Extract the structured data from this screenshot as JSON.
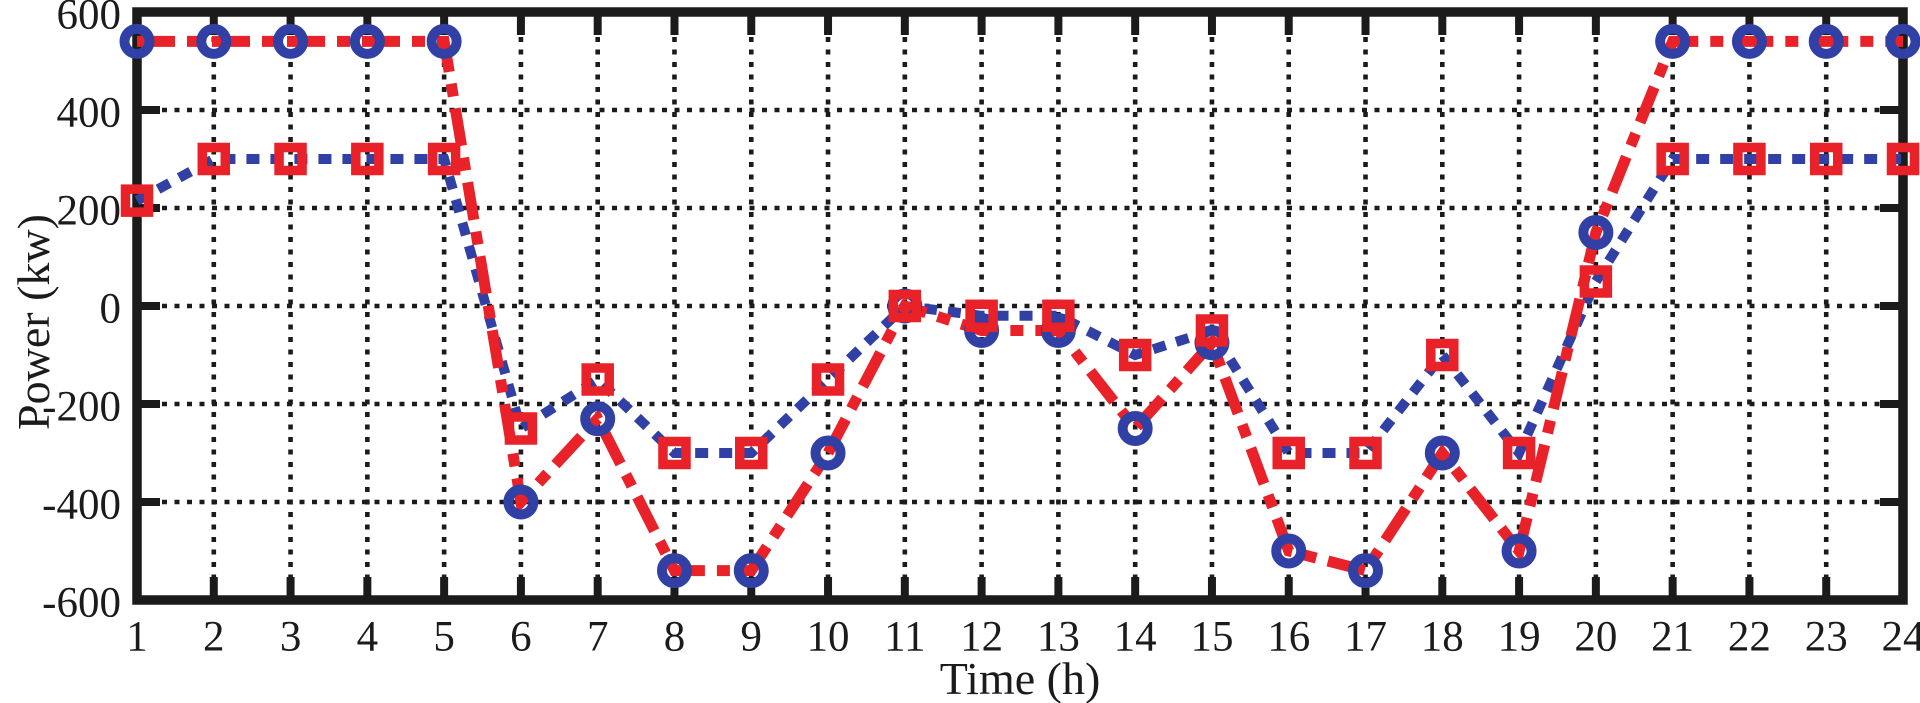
{
  "chart_data": {
    "type": "line",
    "title": "",
    "xlabel": "Time (h)",
    "ylabel": "Power (kw)",
    "x": [
      1,
      2,
      3,
      4,
      5,
      6,
      7,
      8,
      9,
      10,
      11,
      12,
      13,
      14,
      15,
      16,
      17,
      18,
      19,
      20,
      21,
      22,
      23,
      24
    ],
    "xlim": [
      1,
      24
    ],
    "ylim": [
      -600,
      600
    ],
    "xticks": [
      1,
      2,
      3,
      4,
      5,
      6,
      7,
      8,
      9,
      10,
      11,
      12,
      13,
      14,
      15,
      16,
      17,
      18,
      19,
      20,
      21,
      22,
      23,
      24
    ],
    "yticks": [
      -600,
      -400,
      -200,
      0,
      200,
      400,
      600
    ],
    "grid": true,
    "grid_style": "dotted",
    "legend": null,
    "colors": {
      "background": "#ffffff",
      "axis": "#1b1b1b",
      "grid": "#1b1b1b",
      "text": "#1b1b1b",
      "red": "#e92128",
      "blue": "#3140a4"
    },
    "series": [
      {
        "name": "blue-dotted-line-red-square-markers",
        "line_style": "dotted",
        "line_color": "#3140a4",
        "marker": "square",
        "marker_color": "#e92128",
        "values": [
          215,
          300,
          300,
          300,
          300,
          -250,
          -150,
          -300,
          -300,
          -150,
          0,
          -20,
          -20,
          -100,
          -50,
          -300,
          -300,
          -100,
          -300,
          50,
          300,
          300,
          300,
          300
        ]
      },
      {
        "name": "red-dashdot-line-blue-circle-markers",
        "line_style": "dash-dot",
        "line_color": "#e92128",
        "marker": "circle",
        "marker_color": "#3140a4",
        "values": [
          540,
          540,
          540,
          540,
          540,
          -400,
          -230,
          -540,
          -540,
          -300,
          0,
          -50,
          -50,
          -250,
          -75,
          -500,
          -540,
          -300,
          -500,
          150,
          540,
          540,
          540,
          540
        ]
      }
    ]
  }
}
